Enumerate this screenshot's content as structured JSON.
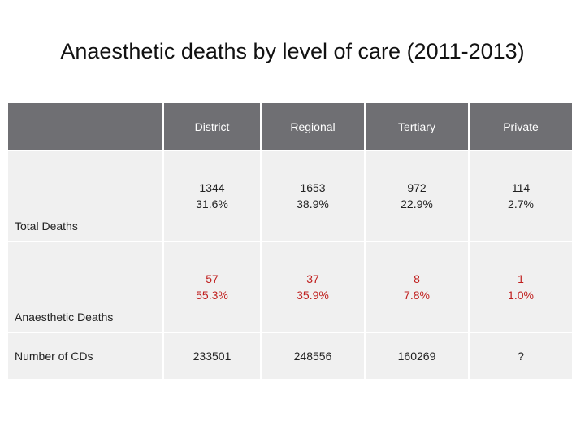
{
  "title": "Anaesthetic deaths by level of care (2011-2013)",
  "columns": [
    "District",
    "Regional",
    "Tertiary",
    "Private"
  ],
  "rows": [
    {
      "label": "Total Deaths",
      "cells": [
        [
          "1344",
          "31.6%"
        ],
        [
          "1653",
          "38.9%"
        ],
        [
          "972",
          "22.9%"
        ],
        [
          "114",
          "2.7%"
        ]
      ]
    },
    {
      "label": "Anaesthetic Deaths",
      "cells": [
        [
          "57",
          "55.3%"
        ],
        [
          "37",
          "35.9%"
        ],
        [
          "8",
          "7.8%"
        ],
        [
          "1",
          "1.0%"
        ]
      ]
    },
    {
      "label": "Number of CDs",
      "cells": [
        [
          "233501"
        ],
        [
          "248556"
        ],
        [
          "160269"
        ],
        [
          "?"
        ]
      ]
    }
  ],
  "colors": {
    "header": "#6f6f73",
    "body": "#f0f0f0",
    "highlight": "#c0201f"
  }
}
